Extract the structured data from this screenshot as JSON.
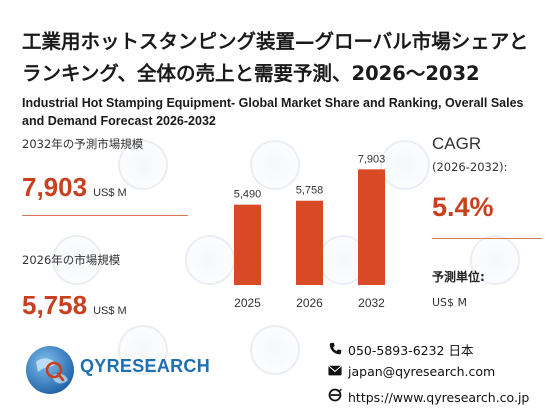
{
  "header": {
    "title_jp": "工業用ホットスタンピング装置—グローバル市場シェアとランキング、全体の売上と需要予測、2026～2032",
    "title_en": "Industrial Hot Stamping Equipment- Global Market Share and Ranking, Overall Sales and Demand Forecast 2026-2032"
  },
  "stats": {
    "forecast_label": "2032年の予測市場規模",
    "forecast_value": "7,903",
    "forecast_unit": "US$ M",
    "current_label": "2026年の市場規模",
    "current_value": "5,758",
    "current_unit": "US$ M"
  },
  "cagr": {
    "title": "CAGR",
    "period": "(2026-2032):",
    "value": "5.4%"
  },
  "unit": {
    "title": "予測単位:",
    "value": "US$ M"
  },
  "logo": {
    "text": "QYRESEARCH"
  },
  "contact": {
    "phone": "050-5893-6232 日本",
    "email": "japan@qyresearch.com",
    "website": "https://www.qyresearch.co.jp"
  },
  "colors": {
    "accent": "#c8401e",
    "bar": "#d84a26",
    "logo_blue": "#1f6fb4"
  },
  "chart_data": {
    "type": "bar",
    "categories": [
      "2025",
      "2026",
      "2032"
    ],
    "values": [
      5490,
      5758,
      7903
    ],
    "value_labels": [
      "5,490",
      "5,758",
      "7,903"
    ],
    "ylim": [
      0,
      8200
    ],
    "title": "",
    "xlabel": "",
    "ylabel": ""
  }
}
